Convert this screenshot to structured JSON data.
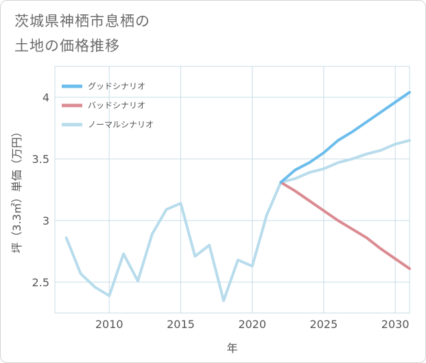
{
  "title": {
    "line1": "茨城県神栖市息栖の",
    "line2": "土地の価格推移"
  },
  "chart_data": {
    "type": "line",
    "xlabel": "年",
    "ylabel": "坪（3.3㎡）単価（万円）",
    "xlim": [
      2006.2,
      2031
    ],
    "ylim": [
      2.25,
      4.25
    ],
    "xticks": [
      2010,
      2015,
      2020,
      2025,
      2030
    ],
    "yticks": [
      2.5,
      3,
      3.5,
      4
    ],
    "ytick_labels": [
      "2.5",
      "3",
      "3.5",
      "4"
    ],
    "grid": true,
    "legend_position": "top-left",
    "series": [
      {
        "name": "グッドシナリオ",
        "color": "#6cbdec",
        "x": [
          2022,
          2023,
          2024,
          2025,
          2026,
          2027,
          2028,
          2029,
          2030,
          2031
        ],
        "values": [
          3.31,
          3.41,
          3.47,
          3.55,
          3.65,
          3.72,
          3.8,
          3.88,
          3.96,
          4.04
        ]
      },
      {
        "name": "バッドシナリオ",
        "color": "#db8b92",
        "x": [
          2022,
          2023,
          2024,
          2025,
          2026,
          2027,
          2028,
          2029,
          2030,
          2031
        ],
        "values": [
          3.31,
          3.24,
          3.16,
          3.08,
          3.0,
          2.93,
          2.86,
          2.77,
          2.69,
          2.61
        ]
      },
      {
        "name": "ノーマルシナリオ",
        "color": "#b8dcec",
        "x": [
          2007,
          2008,
          2009,
          2010,
          2011,
          2012,
          2013,
          2014,
          2015,
          2016,
          2017,
          2018,
          2019,
          2020,
          2021,
          2022,
          2023,
          2024,
          2025,
          2026,
          2027,
          2028,
          2029,
          2030,
          2031
        ],
        "values": [
          2.86,
          2.57,
          2.46,
          2.39,
          2.73,
          2.51,
          2.89,
          3.09,
          3.14,
          2.71,
          2.8,
          2.35,
          2.68,
          2.63,
          3.04,
          3.31,
          3.34,
          3.39,
          3.42,
          3.47,
          3.5,
          3.54,
          3.57,
          3.62,
          3.65
        ]
      }
    ]
  }
}
